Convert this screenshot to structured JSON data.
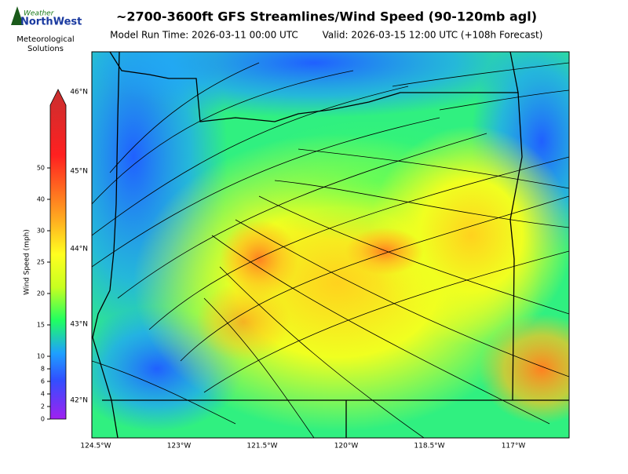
{
  "header": {
    "title": "~2700-3600ft GFS Streamlines/Wind Speed (90-120mb agl)",
    "model_run": "Model Run Time: 2026-03-11 00:00 UTC",
    "valid": "Valid: 2026-03-15 12:00 UTC  (+108h Forecast)"
  },
  "logo": {
    "top": "Weather",
    "name": "NorthWest",
    "line1": "Meteorological",
    "line2": "Solutions"
  },
  "colorbar": {
    "label": "Wind Speed (mph)",
    "ticks": [
      0,
      2,
      4,
      6,
      8,
      10,
      15,
      20,
      25,
      30,
      40,
      50
    ]
  },
  "map": {
    "lat_labels": [
      "46°N",
      "45°N",
      "44°N",
      "43°N",
      "42°N"
    ],
    "lon_labels": [
      "124.5°W",
      "123°W",
      "121.5°W",
      "120°W",
      "118.5°W",
      "117°W"
    ]
  }
}
